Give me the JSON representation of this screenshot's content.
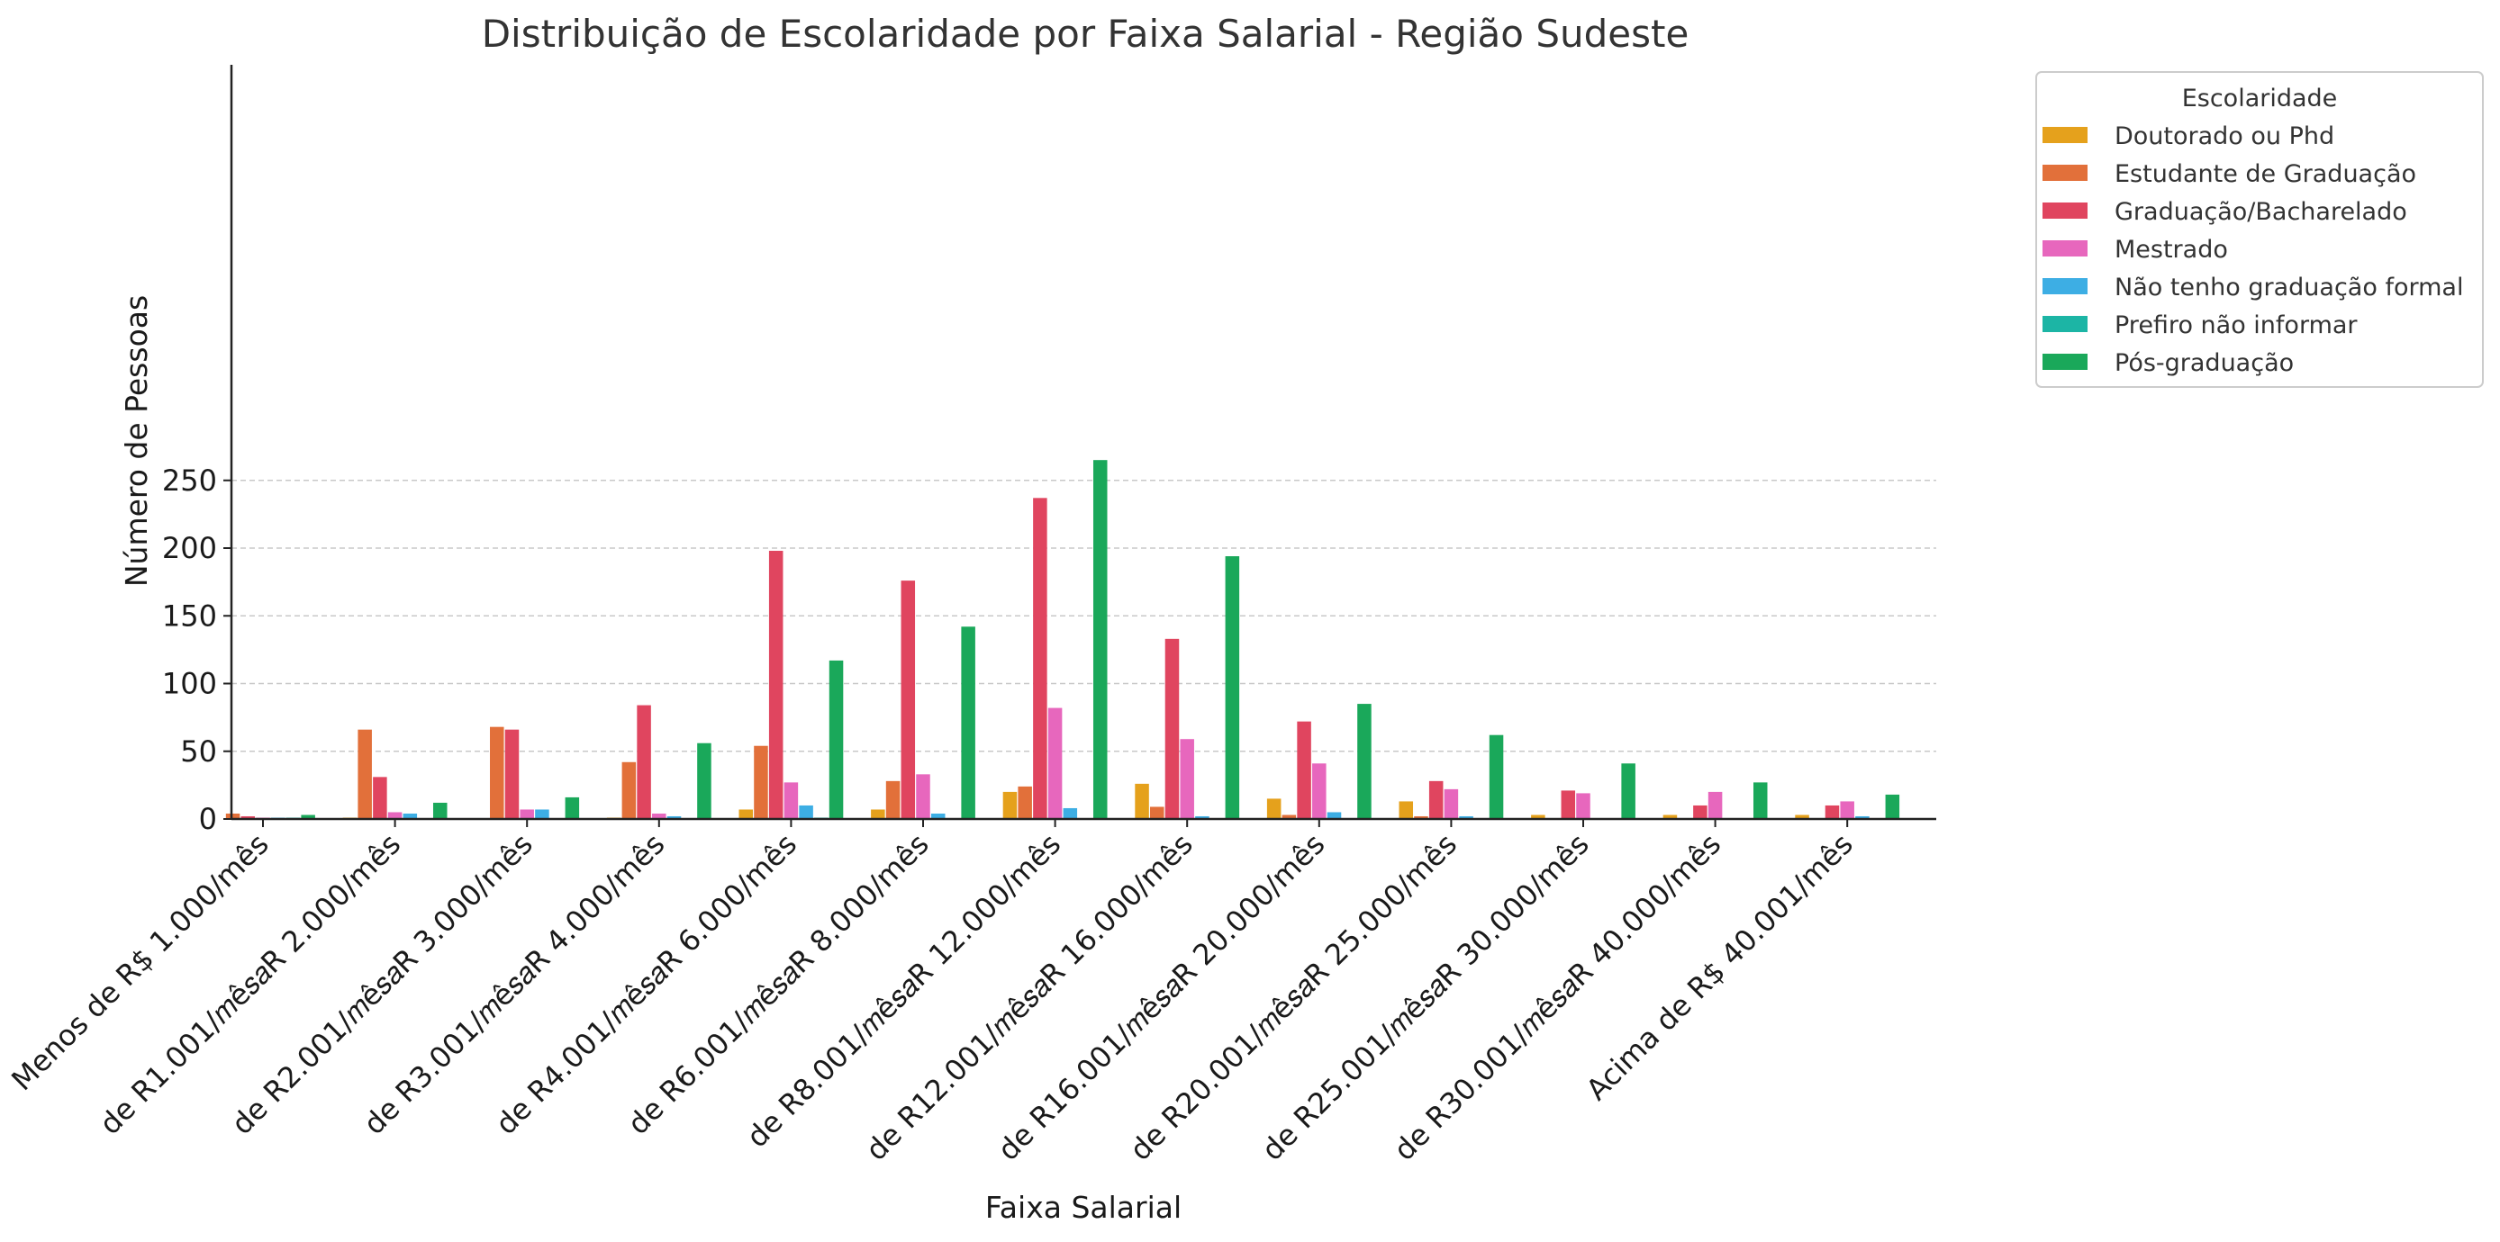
{
  "chart_data": {
    "type": "bar",
    "title": "Distribuição de Escolaridade por Faixa Salarial - Região Sudeste",
    "xlabel": "Faixa Salarial",
    "ylabel": "Número de Pessoas",
    "ylim": [
      0,
      280
    ],
    "yticks": [
      0,
      50,
      100,
      150,
      200,
      250
    ],
    "grid": "y, dashed",
    "legend_title": "Escolaridade",
    "legend_placement": "outside upper right",
    "categories": [
      "Menos de R$ 1.000/mês",
      "de R1.001/𝑚ê𝑠𝑎R 2.000/mês",
      "de R2.001/𝑚ê𝑠𝑎R 3.000/mês",
      "de R3.001/𝑚ê𝑠𝑎R 4.000/mês",
      "de R4.001/𝑚ê𝑠𝑎R 6.000/mês",
      "de R6.001/𝑚ê𝑠𝑎R 8.000/mês",
      "de R8.001/𝑚ê𝑠𝑎R 12.000/mês",
      "de R12.001/𝑚ê𝑠𝑎R 16.000/mês",
      "de R16.001/𝑚ê𝑠𝑎R 20.000/mês",
      "de R20.001/𝑚ê𝑠𝑎R 25.000/mês",
      "de R25.001/𝑚ê𝑠𝑎R 30.000/mês",
      "de R30.001/𝑚ê𝑠𝑎R 40.000/mês",
      "Acima de R$ 40.001/mês"
    ],
    "series": [
      {
        "name": "Doutorado ou Phd",
        "color": "#e5a11c",
        "values": [
          0,
          1,
          0,
          1,
          7,
          7,
          20,
          26,
          15,
          13,
          3,
          3,
          3
        ]
      },
      {
        "name": "Estudante de Graduação",
        "color": "#e2703a",
        "values": [
          4,
          66,
          68,
          42,
          54,
          28,
          24,
          9,
          3,
          2,
          0,
          0,
          0
        ]
      },
      {
        "name": "Graduação/Bacharelado",
        "color": "#e0455f",
        "values": [
          2,
          31,
          66,
          84,
          198,
          176,
          237,
          133,
          72,
          28,
          21,
          10,
          10
        ]
      },
      {
        "name": "Mestrado",
        "color": "#e767bd",
        "values": [
          1,
          5,
          7,
          4,
          27,
          33,
          82,
          59,
          41,
          22,
          19,
          20,
          13
        ]
      },
      {
        "name": "Não tenho graduação formal",
        "color": "#3daee4",
        "values": [
          1,
          4,
          7,
          2,
          10,
          4,
          8,
          2,
          5,
          2,
          0,
          0,
          2
        ]
      },
      {
        "name": "Prefiro não informar",
        "color": "#1cb5a5",
        "values": [
          1,
          0,
          0,
          0,
          1,
          0,
          0,
          0,
          0,
          0,
          0,
          0,
          0
        ]
      },
      {
        "name": "Pós-graduação",
        "color": "#1aa85a",
        "values": [
          3,
          12,
          16,
          56,
          117,
          142,
          265,
          194,
          85,
          62,
          41,
          27,
          18
        ]
      }
    ]
  }
}
